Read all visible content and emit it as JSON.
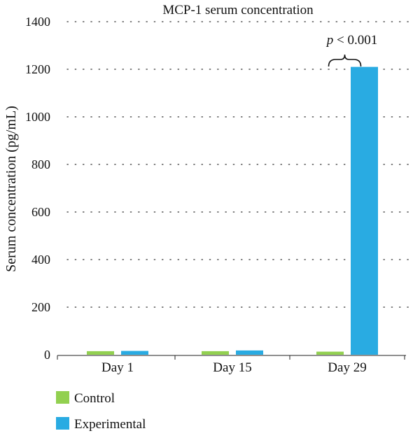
{
  "chart_data": {
    "type": "bar",
    "title": "MCP-1 serum concentration",
    "xlabel": "",
    "ylabel": "Serum concentration (pg/mL)",
    "categories": [
      "Day 1",
      "Day 15",
      "Day 29"
    ],
    "series": [
      {
        "name": "Control",
        "values": [
          15,
          15,
          13
        ],
        "color": "#92d050"
      },
      {
        "name": "Experimental",
        "values": [
          16,
          18,
          1210
        ],
        "color": "#29abe2"
      }
    ],
    "ylim": [
      0,
      1400
    ],
    "yticks": [
      0,
      200,
      400,
      600,
      800,
      1000,
      1200,
      1400
    ],
    "grid": "horizontal-dotted",
    "legend_position": "bottom-left",
    "annotations": [
      {
        "text": "p < 0.001",
        "p_symbol": "p",
        "rest": " < 0.001",
        "category": "Day 29"
      }
    ]
  }
}
